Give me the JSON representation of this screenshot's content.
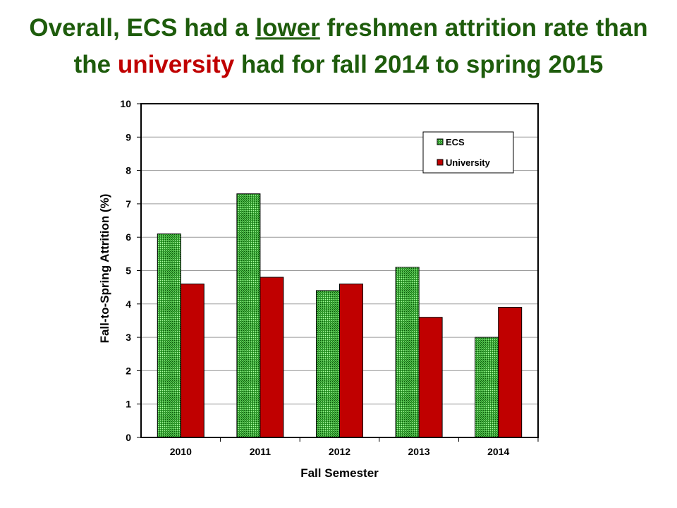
{
  "title": {
    "part1": "Overall, ECS had a ",
    "part2": "lower",
    "part3": " freshmen attrition rate than",
    "part4": "the ",
    "part5": "university",
    "part6": " had for fall 2014 to spring 2015"
  },
  "colors": {
    "title": "#1e5c0c",
    "title_highlight": "#c00000",
    "ecs": "#3fb83a",
    "university": "#c00000"
  },
  "chart_data": {
    "type": "bar",
    "categories": [
      "2010",
      "2011",
      "2012",
      "2013",
      "2014"
    ],
    "series": [
      {
        "name": "ECS",
        "values": [
          6.1,
          7.3,
          4.4,
          5.1,
          3.0
        ],
        "color": "#3fb83a"
      },
      {
        "name": "University",
        "values": [
          4.6,
          4.8,
          4.6,
          3.6,
          3.9
        ],
        "color": "#c00000"
      }
    ],
    "xlabel": "Fall Semester",
    "ylabel": "Fall-to-Spring Attrition (%)",
    "ylim": [
      0,
      10
    ],
    "yticks": [
      "0",
      "1",
      "2",
      "3",
      "4",
      "5",
      "6",
      "7",
      "8",
      "9",
      "10"
    ],
    "grid": true,
    "legend": "top-right"
  }
}
